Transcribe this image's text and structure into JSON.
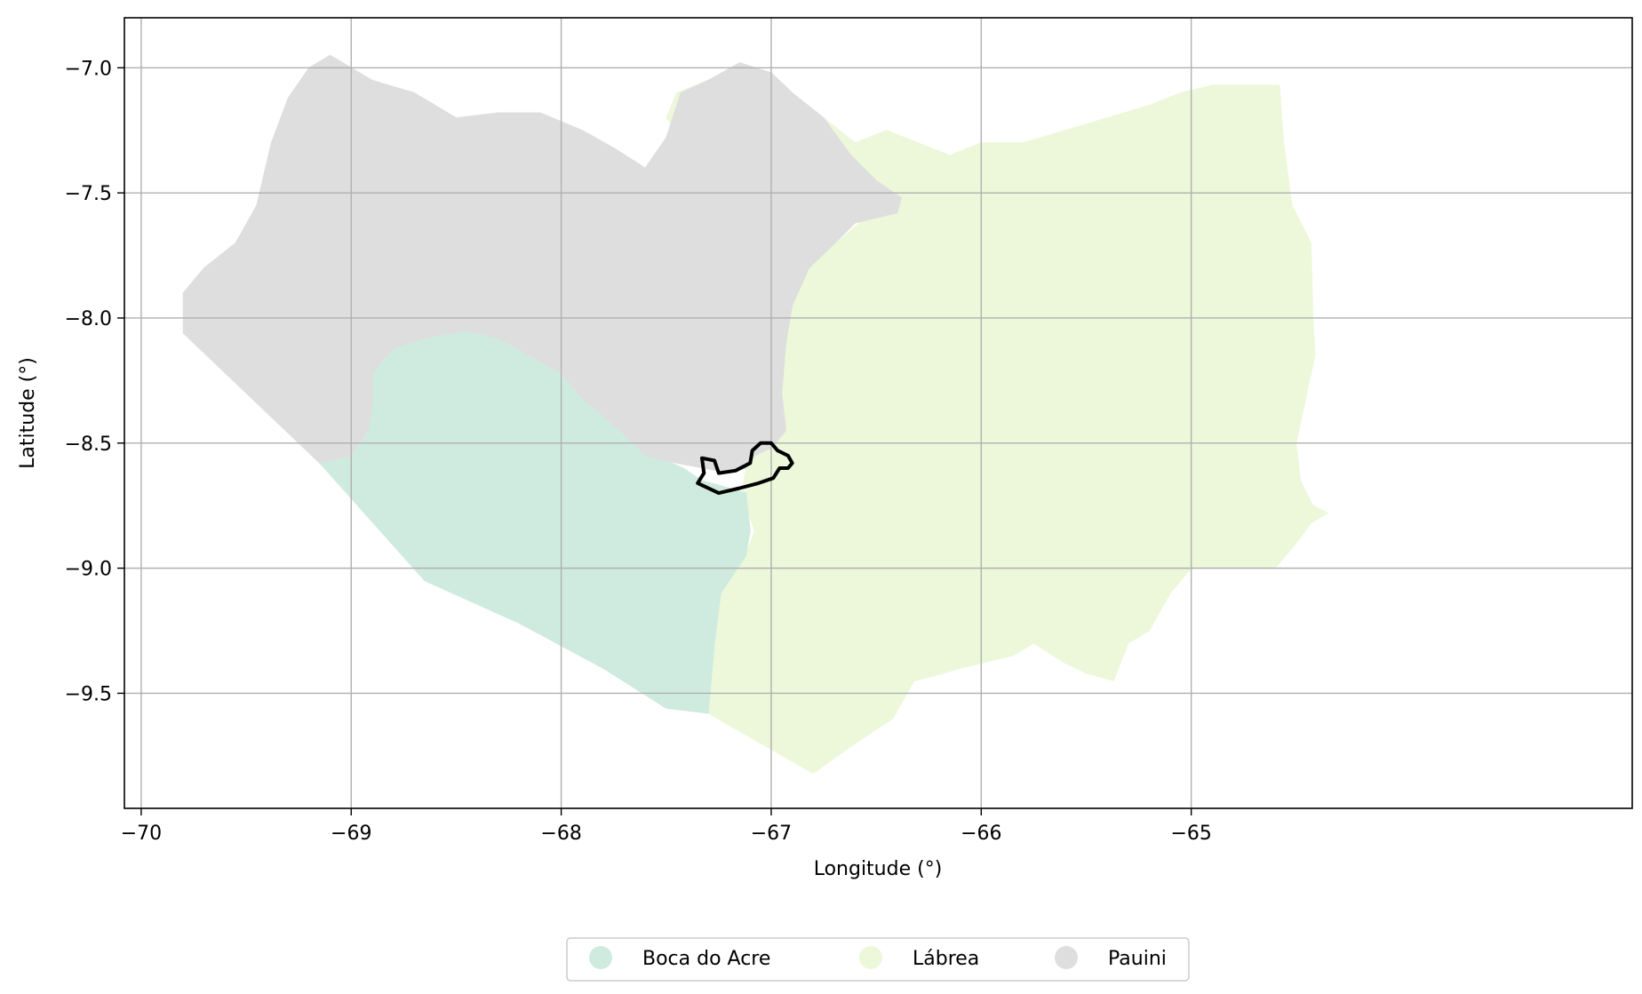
{
  "chart_data": {
    "type": "map",
    "xlabel": "Longitude (°)",
    "ylabel": "Latitude (°)",
    "xlim": [
      -70.08,
      -62.9
    ],
    "ylim": [
      -9.96,
      -6.8
    ],
    "grid": true,
    "x_ticks": [
      -70,
      -69,
      -68,
      -67,
      -66,
      -65
    ],
    "x_tick_labels": [
      "−70",
      "−69",
      "−68",
      "−67",
      "−66",
      "−65"
    ],
    "y_ticks": [
      -7.0,
      -7.5,
      -8.0,
      -8.5,
      -9.0,
      -9.5
    ],
    "y_tick_labels": [
      "−7.0",
      "−7.5",
      "−8.0",
      "−8.5",
      "−9.0",
      "−9.5"
    ],
    "legend_placement": "bottom-center",
    "regions": [
      {
        "name": "Lábrea",
        "color": "#edf8da",
        "polygon": [
          [
            -67.5,
            -7.2
          ],
          [
            -67.45,
            -7.1
          ],
          [
            -67.3,
            -7.05
          ],
          [
            -67.15,
            -6.98
          ],
          [
            -67.0,
            -7.02
          ],
          [
            -66.9,
            -7.1
          ],
          [
            -66.75,
            -7.2
          ],
          [
            -66.6,
            -7.3
          ],
          [
            -66.45,
            -7.25
          ],
          [
            -66.3,
            -7.3
          ],
          [
            -66.15,
            -7.35
          ],
          [
            -66.0,
            -7.3
          ],
          [
            -65.8,
            -7.3
          ],
          [
            -65.6,
            -7.25
          ],
          [
            -65.4,
            -7.2
          ],
          [
            -65.2,
            -7.15
          ],
          [
            -65.05,
            -7.1
          ],
          [
            -64.9,
            -7.07
          ],
          [
            -64.58,
            -7.07
          ],
          [
            -64.56,
            -7.3
          ],
          [
            -64.52,
            -7.55
          ],
          [
            -64.43,
            -7.7
          ],
          [
            -64.42,
            -8.0
          ],
          [
            -64.41,
            -8.15
          ],
          [
            -64.45,
            -8.3
          ],
          [
            -64.5,
            -8.5
          ],
          [
            -64.48,
            -8.65
          ],
          [
            -64.42,
            -8.75
          ],
          [
            -64.35,
            -8.78
          ],
          [
            -64.43,
            -8.82
          ],
          [
            -64.5,
            -8.9
          ],
          [
            -64.6,
            -9.0
          ],
          [
            -64.8,
            -9.0
          ],
          [
            -65.0,
            -9.0
          ],
          [
            -65.1,
            -9.1
          ],
          [
            -65.2,
            -9.25
          ],
          [
            -65.3,
            -9.3
          ],
          [
            -65.37,
            -9.45
          ],
          [
            -65.5,
            -9.42
          ],
          [
            -65.6,
            -9.38
          ],
          [
            -65.75,
            -9.3
          ],
          [
            -65.85,
            -9.35
          ],
          [
            -66.0,
            -9.38
          ],
          [
            -66.1,
            -9.4
          ],
          [
            -66.22,
            -9.43
          ],
          [
            -66.32,
            -9.45
          ],
          [
            -66.42,
            -9.6
          ],
          [
            -66.6,
            -9.7
          ],
          [
            -66.8,
            -9.82
          ],
          [
            -67.05,
            -9.7
          ],
          [
            -67.3,
            -9.58
          ],
          [
            -67.27,
            -9.3
          ],
          [
            -67.24,
            -9.1
          ],
          [
            -67.12,
            -8.95
          ],
          [
            -67.08,
            -8.85
          ],
          [
            -67.14,
            -8.7
          ],
          [
            -67.12,
            -8.6
          ],
          [
            -67.08,
            -8.55
          ],
          [
            -67.0,
            -8.52
          ],
          [
            -66.93,
            -8.45
          ],
          [
            -66.95,
            -8.3
          ],
          [
            -66.93,
            -8.1
          ],
          [
            -66.9,
            -7.95
          ],
          [
            -66.82,
            -7.8
          ],
          [
            -66.72,
            -7.72
          ],
          [
            -66.62,
            -7.65
          ],
          [
            -66.55,
            -7.6
          ],
          [
            -66.4,
            -7.5
          ],
          [
            -66.6,
            -7.45
          ],
          [
            -66.75,
            -7.35
          ],
          [
            -66.9,
            -7.25
          ],
          [
            -67.05,
            -7.2
          ],
          [
            -67.25,
            -7.2
          ],
          [
            -67.4,
            -7.3
          ],
          [
            -67.5,
            -7.2
          ]
        ]
      },
      {
        "name": "Boca do Acre",
        "color": "#cfebdf",
        "polygon": [
          [
            -69.15,
            -8.58
          ],
          [
            -69.0,
            -8.55
          ],
          [
            -68.92,
            -8.45
          ],
          [
            -68.9,
            -8.35
          ],
          [
            -68.9,
            -8.22
          ],
          [
            -68.8,
            -8.12
          ],
          [
            -68.65,
            -8.08
          ],
          [
            -68.45,
            -8.05
          ],
          [
            -68.3,
            -8.08
          ],
          [
            -68.15,
            -8.15
          ],
          [
            -68.0,
            -8.22
          ],
          [
            -67.9,
            -8.32
          ],
          [
            -67.72,
            -8.45
          ],
          [
            -67.55,
            -8.55
          ],
          [
            -67.42,
            -8.6
          ],
          [
            -67.33,
            -8.65
          ],
          [
            -67.2,
            -8.68
          ],
          [
            -67.12,
            -8.7
          ],
          [
            -67.1,
            -8.85
          ],
          [
            -67.12,
            -8.95
          ],
          [
            -67.24,
            -9.1
          ],
          [
            -67.27,
            -9.3
          ],
          [
            -67.3,
            -9.58
          ],
          [
            -67.5,
            -9.56
          ],
          [
            -67.8,
            -9.4
          ],
          [
            -68.2,
            -9.22
          ],
          [
            -68.65,
            -9.05
          ],
          [
            -69.15,
            -8.58
          ]
        ]
      },
      {
        "name": "Pauini",
        "color": "#dedede",
        "polygon": [
          [
            -69.8,
            -8.06
          ],
          [
            -69.8,
            -7.9
          ],
          [
            -69.7,
            -7.8
          ],
          [
            -69.55,
            -7.7
          ],
          [
            -69.45,
            -7.55
          ],
          [
            -69.38,
            -7.3
          ],
          [
            -69.3,
            -7.12
          ],
          [
            -69.2,
            -7.0
          ],
          [
            -69.1,
            -6.95
          ],
          [
            -68.9,
            -7.05
          ],
          [
            -68.7,
            -7.1
          ],
          [
            -68.5,
            -7.2
          ],
          [
            -68.3,
            -7.18
          ],
          [
            -68.1,
            -7.18
          ],
          [
            -67.9,
            -7.25
          ],
          [
            -67.75,
            -7.32
          ],
          [
            -67.6,
            -7.4
          ],
          [
            -67.5,
            -7.28
          ],
          [
            -67.43,
            -7.1
          ],
          [
            -67.3,
            -7.05
          ],
          [
            -67.15,
            -6.98
          ],
          [
            -67.0,
            -7.02
          ],
          [
            -66.9,
            -7.1
          ],
          [
            -66.75,
            -7.2
          ],
          [
            -66.62,
            -7.35
          ],
          [
            -66.5,
            -7.45
          ],
          [
            -66.38,
            -7.52
          ],
          [
            -66.4,
            -7.58
          ],
          [
            -66.6,
            -7.62
          ],
          [
            -66.72,
            -7.72
          ],
          [
            -66.82,
            -7.8
          ],
          [
            -66.9,
            -7.95
          ],
          [
            -66.93,
            -8.1
          ],
          [
            -66.95,
            -8.3
          ],
          [
            -66.93,
            -8.45
          ],
          [
            -67.0,
            -8.52
          ],
          [
            -67.08,
            -8.55
          ],
          [
            -67.12,
            -8.6
          ],
          [
            -67.2,
            -8.62
          ],
          [
            -67.32,
            -8.6
          ],
          [
            -67.45,
            -8.58
          ],
          [
            -67.6,
            -8.55
          ],
          [
            -67.72,
            -8.45
          ],
          [
            -67.9,
            -8.32
          ],
          [
            -68.0,
            -8.22
          ],
          [
            -68.15,
            -8.15
          ],
          [
            -68.3,
            -8.08
          ],
          [
            -68.45,
            -8.05
          ],
          [
            -68.65,
            -8.08
          ],
          [
            -68.8,
            -8.12
          ],
          [
            -68.9,
            -8.22
          ],
          [
            -68.9,
            -8.35
          ],
          [
            -68.92,
            -8.45
          ],
          [
            -69.0,
            -8.55
          ],
          [
            -69.15,
            -8.58
          ],
          [
            -69.8,
            -8.06
          ]
        ]
      }
    ],
    "outline": {
      "color": "#000000",
      "polygon": [
        [
          -67.33,
          -8.56
        ],
        [
          -67.27,
          -8.57
        ],
        [
          -67.25,
          -8.62
        ],
        [
          -67.17,
          -8.61
        ],
        [
          -67.1,
          -8.58
        ],
        [
          -67.09,
          -8.53
        ],
        [
          -67.05,
          -8.5
        ],
        [
          -67.0,
          -8.5
        ],
        [
          -66.97,
          -8.53
        ],
        [
          -66.92,
          -8.55
        ],
        [
          -66.9,
          -8.58
        ],
        [
          -66.92,
          -8.6
        ],
        [
          -66.96,
          -8.6
        ],
        [
          -66.99,
          -8.64
        ],
        [
          -67.06,
          -8.66
        ],
        [
          -67.15,
          -8.68
        ],
        [
          -67.25,
          -8.7
        ],
        [
          -67.35,
          -8.66
        ],
        [
          -67.32,
          -8.62
        ],
        [
          -67.33,
          -8.56
        ]
      ]
    }
  },
  "legend": {
    "items": [
      {
        "label": "Boca do Acre",
        "color": "#cfebdf"
      },
      {
        "label": "Lábrea",
        "color": "#edf8da"
      },
      {
        "label": "Pauini",
        "color": "#dedede"
      }
    ]
  }
}
